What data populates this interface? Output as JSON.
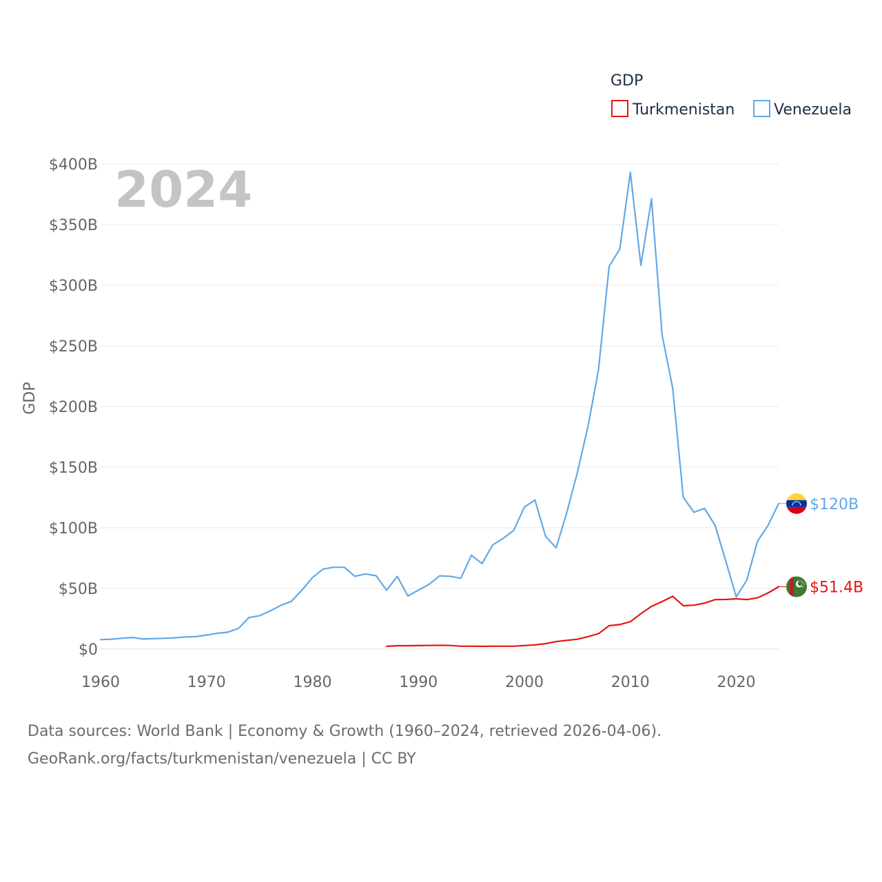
{
  "chart_data": {
    "type": "line",
    "title": "GDP",
    "watermark_year": "2024",
    "ylabel": "GDP",
    "xlabel": "",
    "xlim": [
      1960,
      2024
    ],
    "ylim": [
      0,
      400
    ],
    "y_unit": "billion USD",
    "x_ticks": [
      1960,
      1970,
      1980,
      1990,
      2000,
      2010,
      2020
    ],
    "y_ticks": [
      0,
      50,
      100,
      150,
      200,
      250,
      300,
      350,
      400
    ],
    "y_tick_labels": [
      "$0",
      "$50B",
      "$100B",
      "$150B",
      "$200B",
      "$250B",
      "$300B",
      "$350B",
      "$400B"
    ],
    "legend": {
      "title": "GDP",
      "placement": "top-right"
    },
    "series": [
      {
        "name": "Turkmenistan",
        "color": "#e8140f",
        "end_label": "$51.4B",
        "flag_icon": "turkmenistan-flag-icon",
        "x": [
          1987,
          1988,
          1989,
          1990,
          1991,
          1992,
          1993,
          1994,
          1995,
          1996,
          1997,
          1998,
          1999,
          2000,
          2001,
          2002,
          2003,
          2004,
          2005,
          2006,
          2007,
          2008,
          2009,
          2010,
          2011,
          2012,
          2013,
          2014,
          2015,
          2016,
          2017,
          2018,
          2019,
          2020,
          2021,
          2022,
          2023,
          2024
        ],
        "values": [
          2.3,
          2.8,
          2.8,
          2.9,
          3.0,
          3.1,
          3.0,
          2.4,
          2.4,
          2.3,
          2.4,
          2.4,
          2.4,
          2.9,
          3.5,
          4.5,
          6.2,
          7.2,
          8.1,
          10.3,
          12.7,
          19.3,
          20.2,
          22.6,
          29.2,
          35.2,
          39.2,
          43.5,
          35.8,
          36.2,
          37.9,
          40.8,
          40.9,
          41.5,
          40.8,
          42.3,
          46.3,
          51.4
        ]
      },
      {
        "name": "Venezuela",
        "color": "#62a8e5",
        "end_label": "$120B",
        "flag_icon": "venezuela-flag-icon",
        "x": [
          1960,
          1961,
          1962,
          1963,
          1964,
          1965,
          1966,
          1967,
          1968,
          1969,
          1970,
          1971,
          1972,
          1973,
          1974,
          1975,
          1976,
          1977,
          1978,
          1979,
          1980,
          1981,
          1982,
          1983,
          1984,
          1985,
          1986,
          1987,
          1988,
          1989,
          1990,
          1991,
          1992,
          1993,
          1994,
          1995,
          1996,
          1997,
          1998,
          1999,
          2000,
          2001,
          2002,
          2003,
          2004,
          2005,
          2006,
          2007,
          2008,
          2009,
          2010,
          2011,
          2012,
          2013,
          2014,
          2015,
          2016,
          2017,
          2018,
          2019,
          2020,
          2021,
          2022,
          2023,
          2024
        ],
        "values": [
          7.8,
          8.2,
          8.9,
          9.6,
          8.3,
          8.6,
          8.9,
          9.3,
          10.0,
          10.3,
          11.6,
          13.0,
          14.0,
          17.0,
          26.0,
          27.5,
          31.5,
          36.0,
          39.3,
          48.6,
          59.0,
          66.0,
          67.5,
          67.5,
          60.0,
          62.0,
          60.5,
          48.5,
          60.0,
          43.8,
          48.6,
          53.4,
          60.4,
          60.0,
          58.4,
          77.4,
          70.5,
          85.8,
          91.3,
          97.9,
          117.1,
          122.9,
          92.9,
          83.5,
          112.5,
          145.5,
          183.5,
          230.4,
          315.6,
          329.8,
          393.2,
          316.5,
          371.3,
          258.9,
          215.0,
          125.2,
          112.8,
          116.0,
          102.0,
          73.0,
          43.0,
          57.0,
          89.0,
          102.0,
          120.0
        ]
      }
    ]
  },
  "source": {
    "line1": "Data sources: World Bank | Economy & Growth (1960–2024, retrieved 2026-04-06).",
    "line2": "GeoRank.org/facts/turkmenistan/venezuela | CC BY"
  }
}
